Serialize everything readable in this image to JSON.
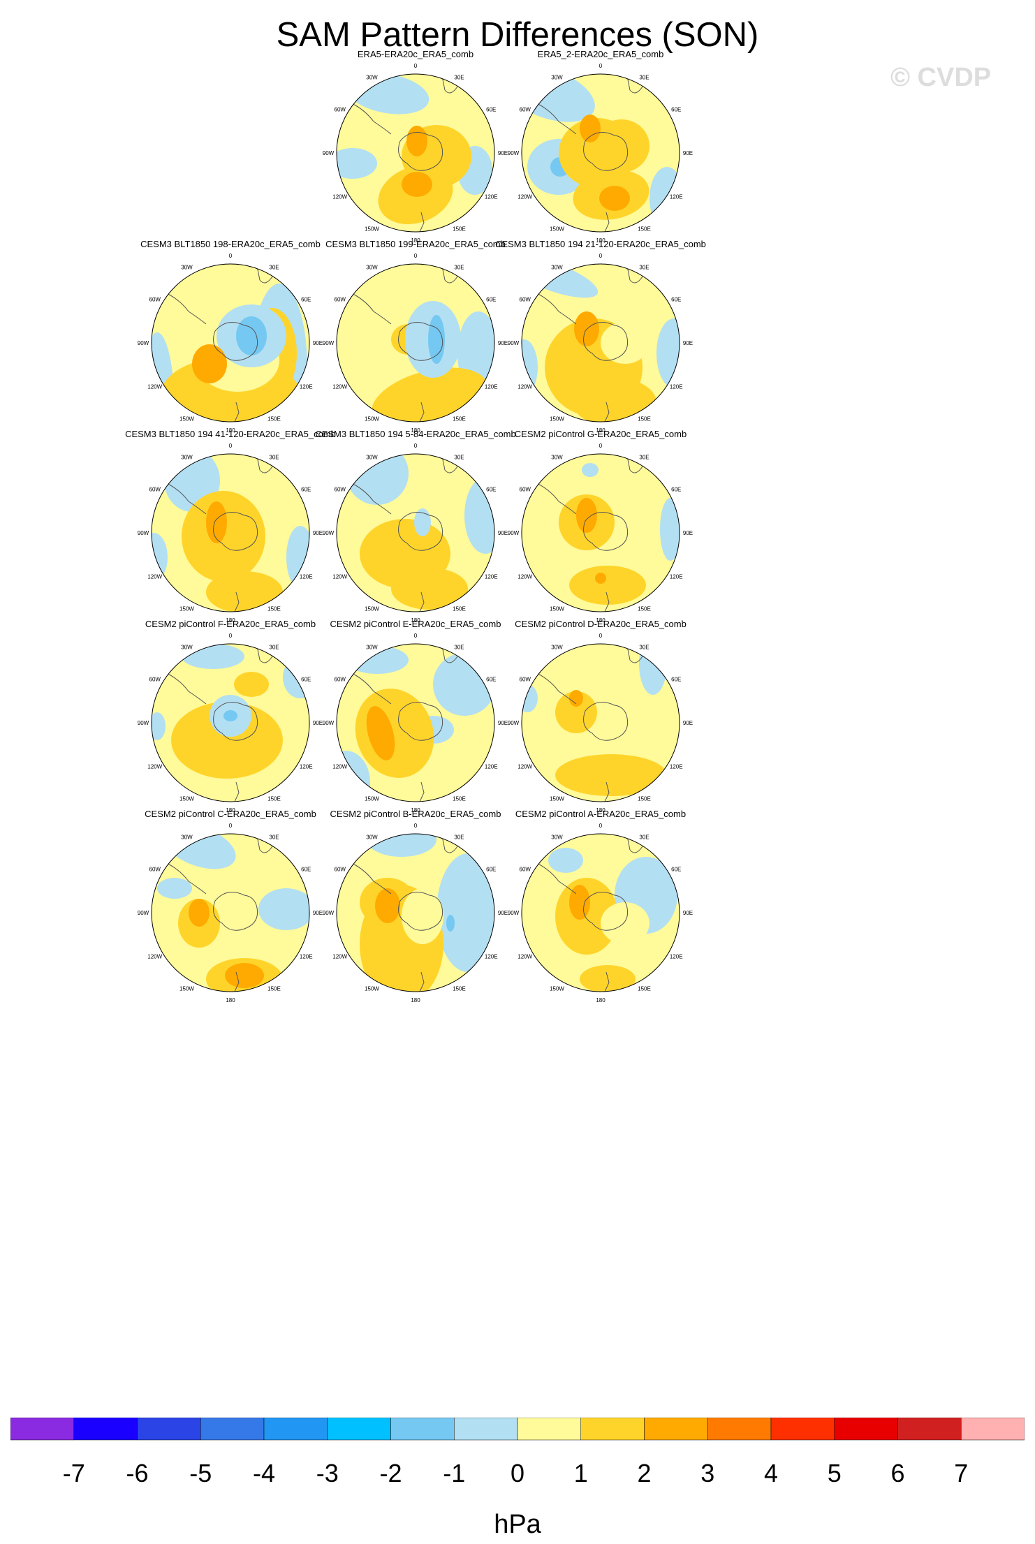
{
  "title": "SAM Pattern Differences (SON)",
  "watermark": "© CVDP",
  "panels": [
    {
      "row": 0,
      "col": 1,
      "title": "ERA5-ERA20c_ERA5_comb",
      "pattern": "p1"
    },
    {
      "row": 0,
      "col": 2,
      "title": "ERA5_2-ERA20c_ERA5_comb",
      "pattern": "p2"
    },
    {
      "row": 1,
      "col": 0,
      "title": "CESM3 BLT1850 198-ERA20c_ERA5_comb",
      "pattern": "p3"
    },
    {
      "row": 1,
      "col": 1,
      "title": "CESM3 BLT1850 199-ERA20c_ERA5_comb",
      "pattern": "p4"
    },
    {
      "row": 1,
      "col": 2,
      "title": "CESM3 BLT1850 194 21-120-ERA20c_ERA5_comb",
      "pattern": "p5"
    },
    {
      "row": 2,
      "col": 0,
      "title": "CESM3 BLT1850 194 41-120-ERA20c_ERA5_comb",
      "pattern": "p6"
    },
    {
      "row": 2,
      "col": 1,
      "title": "CESM3 BLT1850 194 5-84-ERA20c_ERA5_comb",
      "pattern": "p7"
    },
    {
      "row": 2,
      "col": 2,
      "title": "CESM2 piControl G-ERA20c_ERA5_comb",
      "pattern": "p8"
    },
    {
      "row": 3,
      "col": 0,
      "title": "CESM2 piControl F-ERA20c_ERA5_comb",
      "pattern": "p9"
    },
    {
      "row": 3,
      "col": 1,
      "title": "CESM2 piControl E-ERA20c_ERA5_comb",
      "pattern": "p10"
    },
    {
      "row": 3,
      "col": 2,
      "title": "CESM2 piControl D-ERA20c_ERA5_comb",
      "pattern": "p11"
    },
    {
      "row": 4,
      "col": 0,
      "title": "CESM2 piControl C-ERA20c_ERA5_comb",
      "pattern": "p12"
    },
    {
      "row": 4,
      "col": 1,
      "title": "CESM2 piControl B-ERA20c_ERA5_comb",
      "pattern": "p13"
    },
    {
      "row": 4,
      "col": 2,
      "title": "CESM2 piControl A-ERA20c_ERA5_comb",
      "pattern": "p14"
    }
  ],
  "lon_labels": [
    "0",
    "30E",
    "60E",
    "90E",
    "120E",
    "150E",
    "180",
    "150W",
    "120W",
    "90W",
    "60W",
    "30W"
  ],
  "chart_data": {
    "type": "heatmap",
    "title": "SAM Pattern Differences (SON)",
    "projection": "south polar stereographic",
    "colorbar": {
      "unit": "hPa",
      "tick_labels": [
        "-7",
        "-6",
        "-5",
        "-4",
        "-3",
        "-2",
        "-1",
        "0",
        "1",
        "2",
        "3",
        "4",
        "5",
        "6",
        "7"
      ],
      "colors": [
        "#8a2be2",
        "#1a00ff",
        "#2a44e6",
        "#3578e8",
        "#2196f3",
        "#00c0ff",
        "#74c8f2",
        "#b3dff2",
        "#fffa9a",
        "#ffd42a",
        "#ffaa00",
        "#ff7a00",
        "#ff3000",
        "#e80000",
        "#d02020",
        "#ffb0b0"
      ]
    }
  }
}
